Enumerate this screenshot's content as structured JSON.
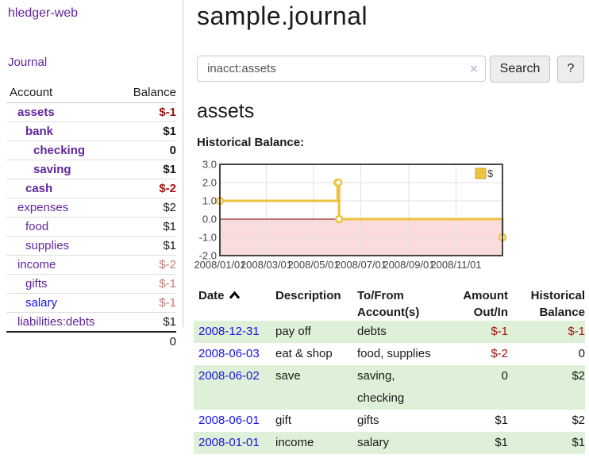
{
  "app": {
    "brand": "hledger-web"
  },
  "sidebar": {
    "journal_label": "Journal",
    "accounts_table": {
      "headers": {
        "account": "Account",
        "balance": "Balance"
      },
      "rows": [
        {
          "name": "assets",
          "depth": 1,
          "bold": true,
          "link": "purple",
          "balance": "$-1",
          "balance_style": "neg-strong"
        },
        {
          "name": "bank",
          "depth": 2,
          "bold": true,
          "link": "purple",
          "balance": "$1",
          "balance_style": ""
        },
        {
          "name": "checking",
          "depth": 3,
          "bold": true,
          "link": "purple",
          "balance": "0",
          "balance_style": ""
        },
        {
          "name": "saving",
          "depth": 3,
          "bold": true,
          "link": "purple",
          "balance": "$1",
          "balance_style": ""
        },
        {
          "name": "cash",
          "depth": 2,
          "bold": true,
          "link": "purple",
          "balance": "$-2",
          "balance_style": "neg-strong"
        },
        {
          "name": "expenses",
          "depth": 1,
          "bold": false,
          "link": "purple",
          "balance": "$2",
          "balance_style": ""
        },
        {
          "name": "food",
          "depth": 2,
          "bold": false,
          "link": "purple",
          "balance": "$1",
          "balance_style": ""
        },
        {
          "name": "supplies",
          "depth": 2,
          "bold": false,
          "link": "purple",
          "balance": "$1",
          "balance_style": ""
        },
        {
          "name": "income",
          "depth": 1,
          "bold": false,
          "link": "purple",
          "balance": "$-2",
          "balance_style": "neg-dim"
        },
        {
          "name": "gifts",
          "depth": 2,
          "bold": false,
          "link": "purple",
          "balance": "$-1",
          "balance_style": "neg-dim"
        },
        {
          "name": "salary",
          "depth": 2,
          "bold": false,
          "link": "blue",
          "balance": "$-1",
          "balance_style": "neg-dim"
        },
        {
          "name": "liabilities:debts",
          "depth": 1,
          "bold": false,
          "link": "purple",
          "balance": "$1",
          "balance_style": ""
        }
      ],
      "total": "0"
    }
  },
  "header": {
    "title": "sample.journal"
  },
  "search": {
    "value": "inacct:assets",
    "clear_icon": "×",
    "button_label": "Search",
    "help_label": "?"
  },
  "account_page": {
    "title": "assets",
    "chart_label": "Historical Balance:"
  },
  "chart_data": {
    "type": "line",
    "step": true,
    "title": "Historical Balance",
    "series": [
      {
        "name": "$",
        "points": [
          [
            "2008-01-01",
            1
          ],
          [
            "2008-06-01",
            2
          ],
          [
            "2008-06-02",
            2
          ],
          [
            "2008-06-03",
            0
          ],
          [
            "2008-12-31",
            -1
          ]
        ]
      }
    ],
    "x_range": [
      "2008-01-01",
      "2008-12-31"
    ],
    "x_ticks": [
      "2008/01/01",
      "2008/03/01",
      "2008/05/01",
      "2008/07/01",
      "2008/09/01",
      "2008/11/01"
    ],
    "y_ticks": [
      3.0,
      2.0,
      1.0,
      0.0,
      -1.0,
      -2.0
    ],
    "ylim": [
      -2.0,
      3.0
    ],
    "legend": {
      "label": "$",
      "position": "top-right"
    },
    "grid": true
  },
  "register_table": {
    "headers": {
      "date": "Date",
      "description": "Description",
      "accounts": "To/From Account(s)",
      "amount": "Amount Out/In",
      "balance": "Historical Balance"
    },
    "rows": [
      {
        "date": "2008-12-31",
        "description": "pay off",
        "accounts": "debts",
        "amount": "$-1",
        "amount_neg": true,
        "balance": "$-1",
        "balance_neg": true
      },
      {
        "date": "2008-06-03",
        "description": "eat & shop",
        "accounts": "food, supplies",
        "amount": "$-2",
        "amount_neg": true,
        "balance": "0",
        "balance_neg": false
      },
      {
        "date": "2008-06-02",
        "description": "save",
        "accounts": "saving, checking",
        "amount": "0",
        "amount_neg": false,
        "balance": "$2",
        "balance_neg": false
      },
      {
        "date": "2008-06-01",
        "description": "gift",
        "accounts": "gifts",
        "amount": "$1",
        "amount_neg": false,
        "balance": "$2",
        "balance_neg": false
      },
      {
        "date": "2008-01-01",
        "description": "income",
        "accounts": "salary",
        "amount": "$1",
        "amount_neg": false,
        "balance": "$1",
        "balance_neg": false
      }
    ]
  },
  "colors": {
    "link_purple": "#61259e",
    "link_blue": "#1414e6",
    "negative_strong": "#a01313",
    "negative_dim": "#c47a7a",
    "row_green": "#dff0d8",
    "button_bg": "#ededed",
    "chart_line": "#edc240",
    "chart_legend_border": "#c9a42c",
    "chart_negative_fill": "#fbdcdc",
    "chart_zero_line": "#8b0000",
    "chart_grid": "#e2e2e2",
    "chart_border": "#444444"
  }
}
